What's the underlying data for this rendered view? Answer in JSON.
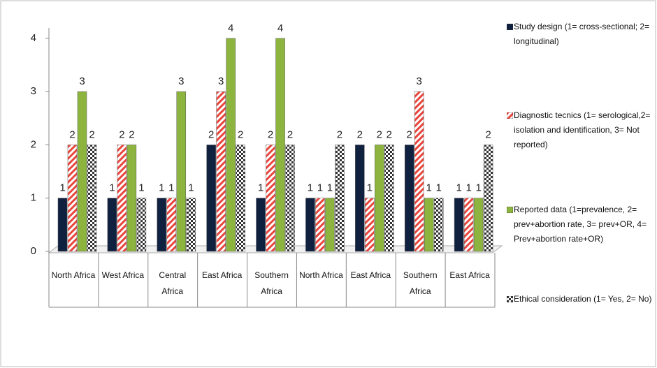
{
  "chart_data": {
    "type": "bar",
    "categories": [
      "North Africa",
      "West Africa",
      "Central Africa",
      "East Africa",
      "Southern Africa",
      "North Africa",
      "East Africa",
      "Southern Africa",
      "East Africa"
    ],
    "series": [
      {
        "name": "Study design (1= cross-sectional; 2= longitudinal)",
        "color": "#10203f",
        "pattern": "solid",
        "values": [
          1,
          1,
          1,
          2,
          1,
          1,
          2,
          2,
          1
        ]
      },
      {
        "name": "Diagnostic tecnics (1= serological,2= isolation and identification, 3= Not reported)",
        "color": "#e8453c",
        "pattern": "stripes",
        "values": [
          2,
          2,
          1,
          3,
          2,
          1,
          1,
          3,
          1
        ]
      },
      {
        "name": "Reported data (1=prevalence, 2= prev+abortion rate, 3= prev+OR, 4= Prev+abortion rate+OR)",
        "color": "#8db43e",
        "pattern": "solid",
        "values": [
          3,
          2,
          3,
          4,
          4,
          1,
          2,
          1,
          1
        ]
      },
      {
        "name": "Ethical consideration (1= Yes, 2= No)",
        "color": "#333333",
        "pattern": "checker",
        "values": [
          2,
          1,
          1,
          2,
          2,
          2,
          2,
          1,
          2
        ]
      }
    ],
    "ylim": [
      0,
      4
    ],
    "yticks": [
      0,
      1,
      2,
      3,
      4
    ],
    "grid": false
  }
}
